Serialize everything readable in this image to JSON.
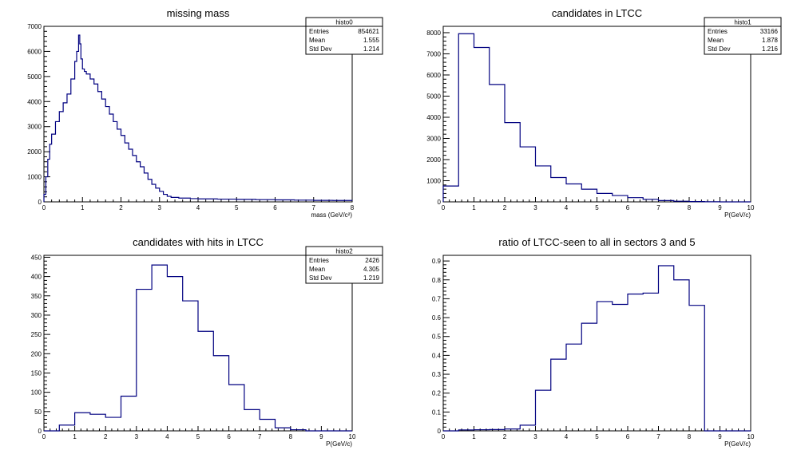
{
  "chart_data": [
    {
      "type": "histogram",
      "title": "missing mass",
      "xlabel": "mass (GeV/c²)",
      "ylabel": "",
      "xlim": [
        0,
        8
      ],
      "ylim": [
        0,
        7000
      ],
      "xticks": [
        "0",
        "1",
        "2",
        "3",
        "4",
        "5",
        "6",
        "7",
        "8"
      ],
      "yticks": [
        "0",
        "1000",
        "2000",
        "3000",
        "4000",
        "5000",
        "6000",
        "7000"
      ],
      "stats": {
        "name": "histo0",
        "rows": [
          {
            "label": "Entries",
            "value": "854621"
          },
          {
            "label": "Mean",
            "value": "1.555"
          },
          {
            "label": "Std Dev",
            "value": "1.214"
          }
        ]
      },
      "series": [
        {
          "x": [
            0,
            0.05,
            0.1,
            0.15,
            0.2,
            0.3,
            0.4,
            0.5,
            0.6,
            0.7,
            0.8,
            0.85,
            0.9,
            0.93,
            0.96,
            1.0,
            1.05,
            1.1,
            1.2,
            1.3,
            1.4,
            1.5,
            1.6,
            1.7,
            1.8,
            1.9,
            2.0,
            2.1,
            2.2,
            2.3,
            2.4,
            2.5,
            2.6,
            2.7,
            2.8,
            2.9,
            3.0,
            3.1,
            3.2,
            3.3,
            3.5,
            3.8,
            4.0,
            4.5,
            5.0,
            5.5,
            6.0,
            6.5,
            7.0,
            7.5,
            8.0
          ],
          "y": [
            300,
            1000,
            1700,
            2300,
            2700,
            3200,
            3600,
            3950,
            4300,
            4900,
            5600,
            6000,
            6650,
            6300,
            5700,
            5300,
            5200,
            5100,
            4900,
            4700,
            4400,
            4100,
            3800,
            3500,
            3200,
            2900,
            2650,
            2350,
            2100,
            1850,
            1600,
            1400,
            1150,
            900,
            700,
            550,
            420,
            300,
            220,
            180,
            150,
            130,
            120,
            110,
            100,
            90,
            80,
            70,
            60,
            55,
            50
          ]
        }
      ]
    },
    {
      "type": "histogram",
      "title": "candidates in LTCC",
      "xlabel": "P(GeV/c)",
      "ylabel": "",
      "xlim": [
        0,
        10
      ],
      "ylim": [
        0,
        8300
      ],
      "xticks": [
        "0",
        "1",
        "2",
        "3",
        "4",
        "5",
        "6",
        "7",
        "8",
        "9",
        "10"
      ],
      "yticks": [
        "0",
        "1000",
        "2000",
        "3000",
        "4000",
        "5000",
        "6000",
        "7000",
        "8000"
      ],
      "stats": {
        "name": "histo1",
        "rows": [
          {
            "label": "Entries",
            "value": "33166"
          },
          {
            "label": "Mean",
            "value": "1.878"
          },
          {
            "label": "Std Dev",
            "value": "1.216"
          }
        ]
      },
      "series": [
        {
          "bin_edges": [
            0,
            0.5,
            1.0,
            1.5,
            2.0,
            2.5,
            3.0,
            3.5,
            4.0,
            4.5,
            5.0,
            5.5,
            6.0,
            6.5,
            7.0,
            7.5,
            8.0,
            8.5,
            9.0,
            9.5,
            10.0
          ],
          "counts": [
            750,
            7950,
            7300,
            5550,
            3750,
            2600,
            1700,
            1150,
            850,
            600,
            400,
            300,
            200,
            120,
            60,
            30,
            15,
            5,
            0,
            0
          ]
        }
      ]
    },
    {
      "type": "histogram",
      "title": "candidates with hits in LTCC",
      "xlabel": "P(GeV/c)",
      "ylabel": "",
      "xlim": [
        0,
        10
      ],
      "ylim": [
        0,
        455
      ],
      "xticks": [
        "0",
        "1",
        "2",
        "3",
        "4",
        "5",
        "6",
        "7",
        "8",
        "9",
        "10"
      ],
      "yticks": [
        "0",
        "50",
        "100",
        "150",
        "200",
        "250",
        "300",
        "350",
        "400",
        "450"
      ],
      "stats": {
        "name": "histo2",
        "rows": [
          {
            "label": "Entries",
            "value": "2426"
          },
          {
            "label": "Mean",
            "value": "4.305"
          },
          {
            "label": "Std Dev",
            "value": "1.219"
          }
        ]
      },
      "series": [
        {
          "bin_edges": [
            0,
            0.5,
            1.0,
            1.5,
            2.0,
            2.5,
            3.0,
            3.5,
            4.0,
            4.5,
            5.0,
            5.5,
            6.0,
            6.5,
            7.0,
            7.5,
            8.0,
            8.5,
            9.0,
            9.5,
            10.0
          ],
          "counts": [
            0,
            15,
            47,
            43,
            35,
            90,
            367,
            430,
            400,
            337,
            258,
            195,
            120,
            55,
            30,
            8,
            3,
            0,
            0,
            0
          ]
        }
      ]
    },
    {
      "type": "histogram",
      "title": "ratio of LTCC-seen to all in sectors 3 and 5",
      "xlabel": "P(GeV/c)",
      "ylabel": "",
      "xlim": [
        0,
        10
      ],
      "ylim": [
        0,
        0.93
      ],
      "xticks": [
        "0",
        "1",
        "2",
        "3",
        "4",
        "5",
        "6",
        "7",
        "8",
        "9",
        "10"
      ],
      "yticks": [
        "0",
        "0.1",
        "0.2",
        "0.3",
        "0.4",
        "0.5",
        "0.6",
        "0.7",
        "0.8",
        "0.9"
      ],
      "stats": null,
      "series": [
        {
          "bin_edges": [
            0,
            0.5,
            1.0,
            1.5,
            2.0,
            2.5,
            3.0,
            3.5,
            4.0,
            4.5,
            5.0,
            5.5,
            6.0,
            6.5,
            7.0,
            7.5,
            8.0,
            8.5,
            9.0,
            9.5,
            10.0
          ],
          "counts": [
            0,
            0.005,
            0.006,
            0.007,
            0.01,
            0.03,
            0.215,
            0.38,
            0.46,
            0.57,
            0.685,
            0.67,
            0.725,
            0.73,
            0.875,
            0.8,
            0.665,
            0,
            0,
            0
          ]
        }
      ]
    }
  ],
  "colors": {
    "histogram_line": "#000080",
    "frame": "#000000",
    "background": "#ffffff"
  }
}
